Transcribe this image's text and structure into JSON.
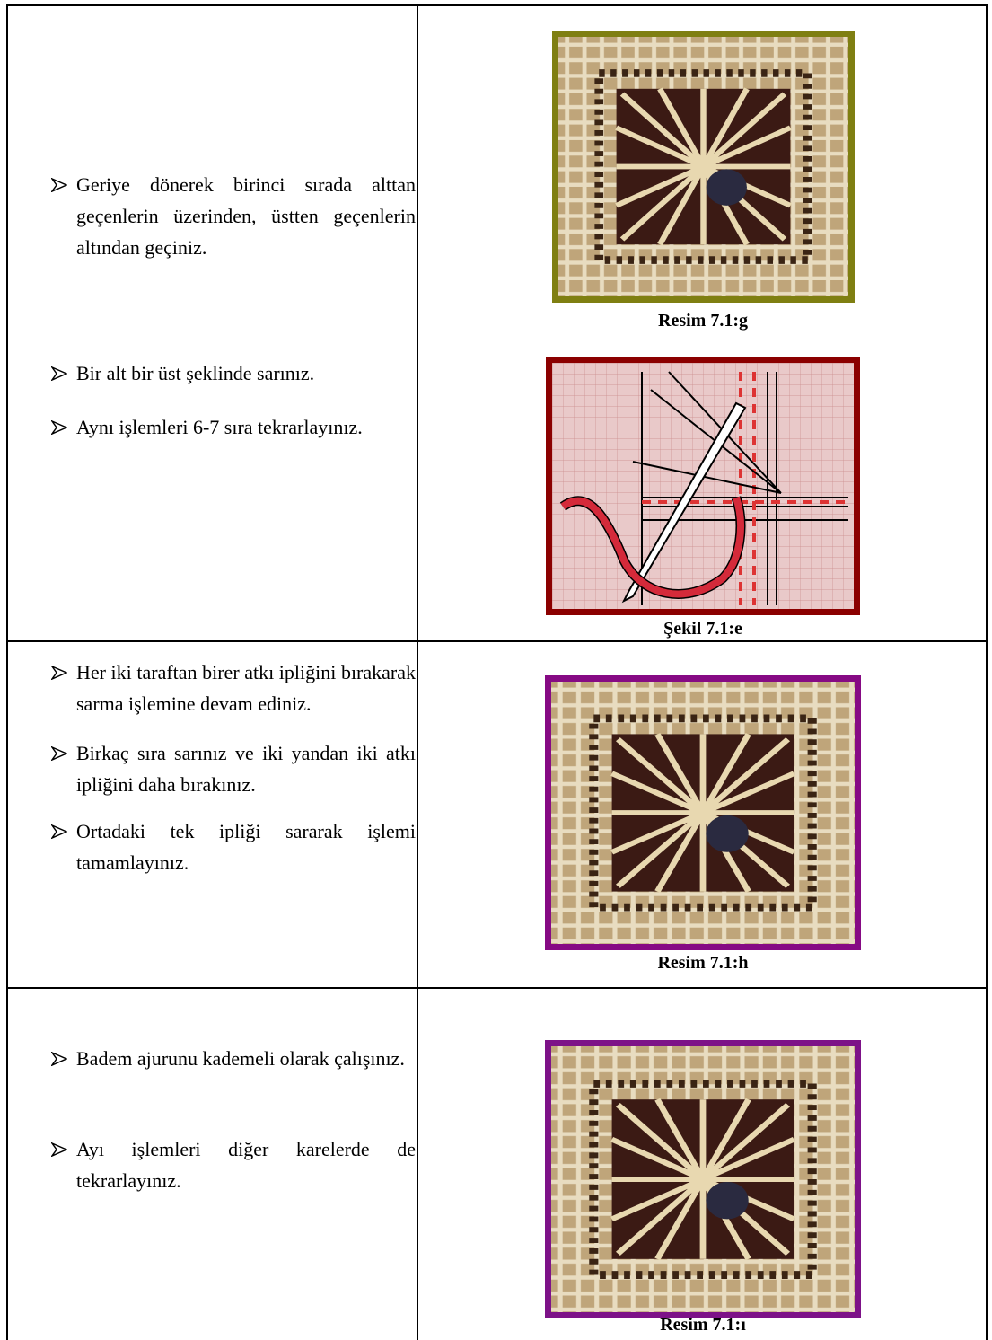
{
  "table": {
    "rows": [
      {
        "steps": [
          "Geriye dönerek birinci sırada alttan geçenlerin üzerinden, üstten geçenlerin altından geçiniz.",
          "Bir alt bir üst şeklinde sarınız.",
          "Aynı işlemleri 6-7 sıra tekrarlayınız."
        ],
        "figures": [
          "Resim 7.1:g",
          "Şekil 7.1:e"
        ]
      },
      {
        "steps": [
          "Her iki taraftan birer atkı ipliğini bırakarak sarma işlemine devam ediniz.",
          "Birkaç sıra sarınız ve iki yandan iki atkı ipliğini daha bırakınız.",
          "Ortadaki tek ipliği sararak işlemi tamamlayınız."
        ],
        "figures": [
          "Resim 7.1:h"
        ]
      },
      {
        "steps": [
          "Badem ajurunu kademeli olarak çalışınız.",
          "Ayı işlemleri diğer karelerde de tekrarlayınız."
        ],
        "figures": [
          "Resim 7.1:ı"
        ]
      }
    ]
  }
}
